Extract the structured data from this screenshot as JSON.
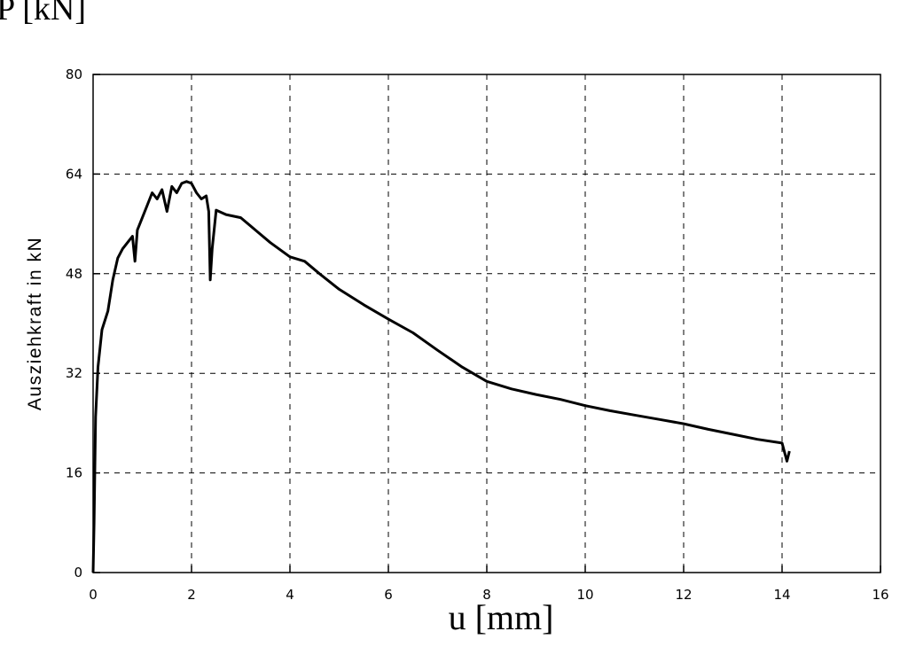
{
  "chart_data": {
    "type": "line",
    "title": "P [kN]",
    "x_label": "u [mm]",
    "y_label": "Ausziehkraft in kN",
    "x": [
      0,
      0.02,
      0.05,
      0.1,
      0.18,
      0.3,
      0.4,
      0.5,
      0.6,
      0.7,
      0.8,
      0.85,
      0.9,
      1.0,
      1.1,
      1.2,
      1.3,
      1.4,
      1.5,
      1.6,
      1.7,
      1.8,
      1.9,
      2.0,
      2.1,
      2.2,
      2.3,
      2.35,
      2.38,
      2.42,
      2.5,
      2.7,
      3.0,
      3.3,
      3.6,
      4.0,
      4.3,
      4.6,
      5.0,
      5.5,
      6.0,
      6.5,
      7.0,
      7.5,
      8.0,
      8.5,
      9.0,
      9.5,
      10.0,
      10.5,
      11.0,
      11.5,
      12.0,
      12.5,
      13.0,
      13.5,
      14.0,
      14.1,
      14.15
    ],
    "values": [
      0,
      8,
      25,
      33,
      39,
      42,
      47,
      50.5,
      52,
      53,
      54,
      50,
      55,
      57,
      59,
      61,
      60,
      61.5,
      58,
      62,
      61,
      62.5,
      62.8,
      62.5,
      61,
      60,
      60.5,
      58,
      47,
      52,
      58.2,
      57.5,
      57,
      55,
      53,
      50.7,
      50,
      48,
      45.5,
      43,
      40.7,
      38.5,
      35.7,
      33,
      30.7,
      29.5,
      28.6,
      27.8,
      26.8,
      26,
      25.3,
      24.6,
      23.9,
      23,
      22.2,
      21.4,
      20.8,
      17.9,
      19.5
    ],
    "color": "#000000",
    "xlim": [
      0,
      16
    ],
    "xticks": [
      0,
      2,
      4,
      6,
      8,
      10,
      12,
      14,
      16
    ],
    "ylim": [
      0,
      80
    ],
    "yticks": [
      0,
      16,
      32,
      48,
      64,
      80
    ],
    "grid": true
  }
}
